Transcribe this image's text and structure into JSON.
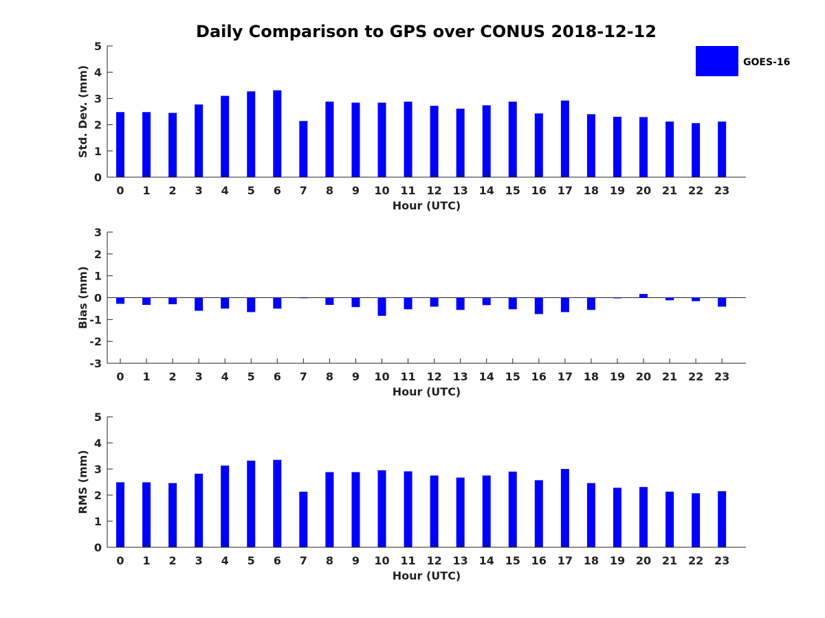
{
  "figure": {
    "title": "Daily Comparison to GPS over CONUS 2018-12-12",
    "series_color": "#0000ff",
    "legend_label": "GOES-16"
  },
  "chart_data": [
    {
      "type": "bar",
      "title": "Daily Comparison to GPS over CONUS 2018-12-12",
      "xlabel": "Hour (UTC)",
      "ylabel": "Std. Dev. (mm)",
      "ylim": [
        0,
        5
      ],
      "yticks": [
        "0",
        "1",
        "2",
        "3",
        "4",
        "5"
      ],
      "categories": [
        "0",
        "1",
        "2",
        "3",
        "4",
        "5",
        "6",
        "7",
        "8",
        "9",
        "10",
        "11",
        "12",
        "13",
        "14",
        "15",
        "16",
        "17",
        "18",
        "19",
        "20",
        "21",
        "22",
        "23"
      ],
      "series": [
        {
          "name": "GOES-16",
          "values": [
            2.48,
            2.48,
            2.45,
            2.77,
            3.1,
            3.27,
            3.31,
            2.14,
            2.88,
            2.84,
            2.84,
            2.88,
            2.72,
            2.61,
            2.74,
            2.88,
            2.43,
            2.92,
            2.4,
            2.3,
            2.29,
            2.12,
            2.06,
            2.12
          ]
        }
      ],
      "legend": "top-right"
    },
    {
      "type": "bar",
      "xlabel": "Hour (UTC)",
      "ylabel": "Bias (mm)",
      "ylim": [
        -3,
        3
      ],
      "yticks": [
        "-3",
        "-2",
        "-1",
        "0",
        "1",
        "2",
        "3"
      ],
      "categories": [
        "0",
        "1",
        "2",
        "3",
        "4",
        "5",
        "6",
        "7",
        "8",
        "9",
        "10",
        "11",
        "12",
        "13",
        "14",
        "15",
        "16",
        "17",
        "18",
        "19",
        "20",
        "21",
        "22",
        "23"
      ],
      "series": [
        {
          "name": "GOES-16",
          "values": [
            -0.28,
            -0.33,
            -0.3,
            -0.6,
            -0.5,
            -0.66,
            -0.5,
            -0.02,
            -0.33,
            -0.43,
            -0.83,
            -0.53,
            -0.41,
            -0.56,
            -0.34,
            -0.53,
            -0.75,
            -0.66,
            -0.56,
            -0.03,
            0.17,
            -0.12,
            -0.16,
            -0.41
          ]
        }
      ]
    },
    {
      "type": "bar",
      "xlabel": "Hour (UTC)",
      "ylabel": "RMS (mm)",
      "ylim": [
        0,
        5
      ],
      "yticks": [
        "0",
        "1",
        "2",
        "3",
        "4",
        "5"
      ],
      "categories": [
        "0",
        "1",
        "2",
        "3",
        "4",
        "5",
        "6",
        "7",
        "8",
        "9",
        "10",
        "11",
        "12",
        "13",
        "14",
        "15",
        "16",
        "17",
        "18",
        "19",
        "20",
        "21",
        "22",
        "23"
      ],
      "series": [
        {
          "name": "GOES-16",
          "values": [
            2.49,
            2.49,
            2.46,
            2.82,
            3.13,
            3.32,
            3.35,
            2.13,
            2.88,
            2.88,
            2.95,
            2.91,
            2.75,
            2.67,
            2.75,
            2.9,
            2.57,
            3.0,
            2.46,
            2.28,
            2.31,
            2.13,
            2.07,
            2.15
          ]
        }
      ]
    }
  ]
}
